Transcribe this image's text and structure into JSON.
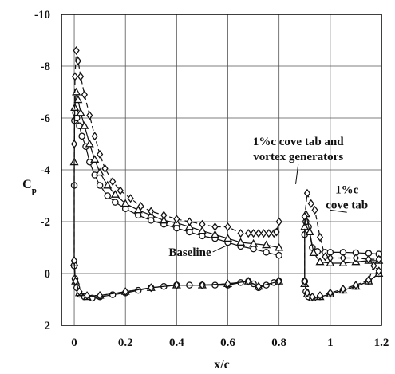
{
  "chart_data": {
    "type": "line",
    "xlabel": "x/c",
    "ylabel": "C",
    "ylabel_sub": "p",
    "xlim": [
      -0.05,
      1.2
    ],
    "ylim": [
      2,
      -10
    ],
    "y_inverted": true,
    "grid": true,
    "xticks": [
      {
        "value": 0,
        "label": "0"
      },
      {
        "value": 0.2,
        "label": "0.2"
      },
      {
        "value": 0.4,
        "label": "0.4"
      },
      {
        "value": 0.6,
        "label": "0.6"
      },
      {
        "value": 0.8,
        "label": "0.8"
      },
      {
        "value": 1.0,
        "label": "1"
      },
      {
        "value": 1.2,
        "label": "1.2"
      }
    ],
    "yticks": [
      {
        "value": -10,
        "label": "-10"
      },
      {
        "value": -8,
        "label": "-8"
      },
      {
        "value": -6,
        "label": "-6"
      },
      {
        "value": -4,
        "label": "-4"
      },
      {
        "value": -2,
        "label": "-2"
      },
      {
        "value": 0,
        "label": "0"
      },
      {
        "value": 2,
        "label": "2"
      }
    ],
    "annotations": [
      {
        "lines": [
          "1%c cove tab and",
          "vortex generators"
        ],
        "x": 0.875,
        "y": -4.95,
        "anchor": "middle",
        "pointer": [
          0.865,
          -3.45
        ]
      },
      {
        "lines": [
          "1%c",
          "cove tab"
        ],
        "x": 1.065,
        "y": -3.1,
        "anchor": "middle",
        "pointer": [
          1.0,
          -2.45
        ]
      },
      {
        "lines": [
          "Baseline"
        ],
        "x": 0.535,
        "y": -0.68,
        "anchor": "end",
        "pointer": [
          0.6,
          -1.1
        ]
      }
    ],
    "series": [
      {
        "marker": "circle",
        "line": "solid",
        "segments": [
          [
            [
              0.0,
              -0.3
            ],
            [
              0.0,
              -3.4
            ],
            [
              0.001,
              -5.9
            ],
            [
              0.005,
              -6.2
            ],
            [
              0.01,
              -6.0
            ],
            [
              0.02,
              -5.7
            ],
            [
              0.03,
              -5.3
            ],
            [
              0.045,
              -4.9
            ],
            [
              0.06,
              -4.3
            ],
            [
              0.08,
              -3.8
            ],
            [
              0.1,
              -3.4
            ],
            [
              0.13,
              -3.0
            ],
            [
              0.16,
              -2.75
            ],
            [
              0.2,
              -2.5
            ],
            [
              0.25,
              -2.25
            ],
            [
              0.3,
              -2.05
            ],
            [
              0.35,
              -1.9
            ],
            [
              0.4,
              -1.75
            ],
            [
              0.45,
              -1.6
            ],
            [
              0.5,
              -1.45
            ],
            [
              0.55,
              -1.35
            ],
            [
              0.6,
              -1.2
            ],
            [
              0.65,
              -1.05
            ],
            [
              0.7,
              -0.95
            ],
            [
              0.75,
              -0.82
            ],
            [
              0.8,
              -0.7
            ]
          ],
          [
            [
              0.0,
              -0.3
            ],
            [
              0.003,
              0.2
            ],
            [
              0.01,
              0.55
            ],
            [
              0.02,
              0.8
            ],
            [
              0.04,
              0.9
            ],
            [
              0.07,
              0.95
            ],
            [
              0.1,
              0.9
            ],
            [
              0.15,
              0.82
            ],
            [
              0.2,
              0.75
            ],
            [
              0.25,
              0.65
            ],
            [
              0.3,
              0.55
            ],
            [
              0.35,
              0.5
            ],
            [
              0.4,
              0.45
            ],
            [
              0.45,
              0.45
            ],
            [
              0.5,
              0.45
            ],
            [
              0.55,
              0.45
            ],
            [
              0.6,
              0.45
            ],
            [
              0.65,
              0.35
            ],
            [
              0.68,
              0.3
            ],
            [
              0.7,
              0.4
            ],
            [
              0.72,
              0.55
            ],
            [
              0.75,
              0.45
            ],
            [
              0.78,
              0.35
            ],
            [
              0.8,
              0.3
            ]
          ],
          [
            [
              0.9,
              0.3
            ],
            [
              0.9,
              -1.5
            ],
            [
              0.905,
              -2.0
            ],
            [
              0.915,
              -1.8
            ],
            [
              0.93,
              -1.0
            ],
            [
              0.95,
              -0.85
            ],
            [
              0.98,
              -0.82
            ],
            [
              1.0,
              -0.82
            ],
            [
              1.05,
              -0.82
            ],
            [
              1.1,
              -0.8
            ],
            [
              1.15,
              -0.78
            ],
            [
              1.19,
              -0.75
            ]
          ],
          [
            [
              0.9,
              0.3
            ],
            [
              0.905,
              0.7
            ],
            [
              0.915,
              0.9
            ],
            [
              0.93,
              0.95
            ],
            [
              0.96,
              0.9
            ],
            [
              1.0,
              0.8
            ],
            [
              1.05,
              0.65
            ],
            [
              1.1,
              0.5
            ],
            [
              1.15,
              0.3
            ],
            [
              1.19,
              0.0
            ]
          ]
        ]
      },
      {
        "marker": "triangle",
        "line": "solid",
        "segments": [
          [
            [
              0.0,
              -0.4
            ],
            [
              0.0,
              -4.3
            ],
            [
              0.002,
              -6.4
            ],
            [
              0.008,
              -7.0
            ],
            [
              0.015,
              -6.7
            ],
            [
              0.025,
              -6.2
            ],
            [
              0.04,
              -5.7
            ],
            [
              0.06,
              -5.0
            ],
            [
              0.08,
              -4.4
            ],
            [
              0.1,
              -3.9
            ],
            [
              0.13,
              -3.4
            ],
            [
              0.16,
              -3.05
            ],
            [
              0.2,
              -2.7
            ],
            [
              0.25,
              -2.45
            ],
            [
              0.3,
              -2.25
            ],
            [
              0.35,
              -2.05
            ],
            [
              0.4,
              -1.95
            ],
            [
              0.45,
              -1.8
            ],
            [
              0.5,
              -1.65
            ],
            [
              0.55,
              -1.5
            ],
            [
              0.6,
              -1.35
            ],
            [
              0.65,
              -1.2
            ],
            [
              0.7,
              -1.15
            ],
            [
              0.75,
              -1.1
            ],
            [
              0.8,
              -1.0
            ]
          ],
          [
            [
              0.0,
              -0.4
            ],
            [
              0.005,
              0.3
            ],
            [
              0.02,
              0.75
            ],
            [
              0.05,
              0.9
            ],
            [
              0.1,
              0.85
            ],
            [
              0.2,
              0.7
            ],
            [
              0.3,
              0.55
            ],
            [
              0.4,
              0.45
            ],
            [
              0.5,
              0.45
            ],
            [
              0.6,
              0.4
            ],
            [
              0.68,
              0.3
            ],
            [
              0.72,
              0.5
            ],
            [
              0.8,
              0.3
            ]
          ],
          [
            [
              0.9,
              0.4
            ],
            [
              0.9,
              -1.8
            ],
            [
              0.905,
              -2.3
            ],
            [
              0.92,
              -1.6
            ],
            [
              0.935,
              -0.8
            ],
            [
              0.96,
              -0.45
            ],
            [
              1.0,
              -0.4
            ],
            [
              1.05,
              -0.4
            ],
            [
              1.1,
              -0.45
            ],
            [
              1.15,
              -0.5
            ],
            [
              1.19,
              -0.5
            ]
          ],
          [
            [
              0.9,
              0.4
            ],
            [
              0.91,
              0.8
            ],
            [
              0.93,
              0.95
            ],
            [
              0.96,
              0.9
            ],
            [
              1.0,
              0.8
            ],
            [
              1.05,
              0.65
            ],
            [
              1.1,
              0.5
            ],
            [
              1.15,
              0.3
            ],
            [
              1.19,
              0.0
            ]
          ]
        ]
      },
      {
        "marker": "diamond",
        "line": "dashed",
        "segments": [
          [
            [
              0.0,
              -0.5
            ],
            [
              0.0,
              -5.0
            ],
            [
              0.003,
              -7.6
            ],
            [
              0.008,
              -8.6
            ],
            [
              0.015,
              -8.2
            ],
            [
              0.025,
              -7.6
            ],
            [
              0.04,
              -6.9
            ],
            [
              0.06,
              -6.1
            ],
            [
              0.08,
              -5.3
            ],
            [
              0.1,
              -4.6
            ],
            [
              0.12,
              -4.05
            ],
            [
              0.15,
              -3.55
            ],
            [
              0.18,
              -3.2
            ],
            [
              0.22,
              -2.9
            ],
            [
              0.26,
              -2.6
            ],
            [
              0.3,
              -2.4
            ],
            [
              0.35,
              -2.25
            ],
            [
              0.4,
              -2.1
            ],
            [
              0.45,
              -2.0
            ],
            [
              0.5,
              -1.9
            ],
            [
              0.55,
              -1.8
            ],
            [
              0.6,
              -1.8
            ],
            [
              0.65,
              -1.55
            ],
            [
              0.68,
              -1.55
            ],
            [
              0.7,
              -1.55
            ],
            [
              0.72,
              -1.55
            ],
            [
              0.74,
              -1.55
            ],
            [
              0.76,
              -1.55
            ],
            [
              0.78,
              -1.55
            ],
            [
              0.79,
              -1.6
            ],
            [
              0.8,
              -2.0
            ]
          ],
          [
            [
              0.0,
              -0.5
            ],
            [
              0.005,
              0.3
            ],
            [
              0.02,
              0.7
            ],
            [
              0.05,
              0.85
            ],
            [
              0.1,
              0.85
            ],
            [
              0.2,
              0.7
            ],
            [
              0.3,
              0.55
            ],
            [
              0.4,
              0.45
            ],
            [
              0.5,
              0.45
            ],
            [
              0.6,
              0.4
            ],
            [
              0.68,
              0.3
            ],
            [
              0.72,
              0.5
            ],
            [
              0.8,
              0.3
            ]
          ],
          [
            [
              0.9,
              0.3
            ],
            [
              0.9,
              -2.2
            ],
            [
              0.91,
              -3.1
            ],
            [
              0.925,
              -2.7
            ],
            [
              0.94,
              -2.45
            ],
            [
              0.96,
              -1.4
            ],
            [
              0.98,
              -0.65
            ],
            [
              1.0,
              -0.6
            ],
            [
              1.05,
              -0.6
            ],
            [
              1.1,
              -0.6
            ],
            [
              1.15,
              -0.55
            ],
            [
              1.19,
              -0.55
            ]
          ],
          [
            [
              0.9,
              0.3
            ],
            [
              0.91,
              0.75
            ],
            [
              0.93,
              0.9
            ],
            [
              0.96,
              0.85
            ],
            [
              1.0,
              0.75
            ],
            [
              1.05,
              0.6
            ],
            [
              1.1,
              0.45
            ],
            [
              1.15,
              0.25
            ],
            [
              1.17,
              -0.3
            ],
            [
              1.19,
              -0.1
            ]
          ]
        ]
      }
    ]
  }
}
